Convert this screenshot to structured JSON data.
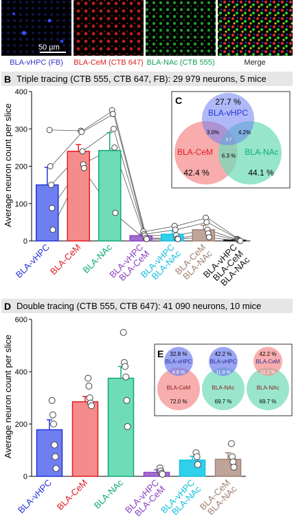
{
  "panel_a": {
    "letter": "A",
    "scale_bar_label": "50 µm",
    "channels": [
      {
        "label": "BLA-vHPC (FB)",
        "color": "#3333cc"
      },
      {
        "label": "BLA-CeM (CTB 647)",
        "color": "#e02020"
      },
      {
        "label": "BLA-NAc (CTB 555)",
        "color": "#10a050"
      },
      {
        "label": "Merge",
        "color": "#222222"
      }
    ]
  },
  "colors": {
    "vhpc": "#6f7ff0",
    "cem": "#f58c8c",
    "nac": "#6fdcb8",
    "vhpc_cem": "#a070d0",
    "vhpc_nac": "#30d0ec",
    "cem_nac": "#c0a49a",
    "triple": "#111111",
    "vhpc_text": "#2432d8",
    "cem_text": "#e01b23",
    "nac_text": "#0fa878",
    "vhpc_cem_text": "#8a3fc0",
    "vhpc_nac_text": "#10c0e0",
    "cem_nac_text": "#a08070"
  },
  "chart_data": [
    {
      "type": "bar",
      "panel_letter": "B",
      "title": "Triple tracing (CTB 555, CTB 647, FB): 29 979 neurons, 5 mice",
      "ylabel": "Average neuron count per slice",
      "ylim": [
        0,
        400
      ],
      "yticks": [
        0,
        100,
        200,
        300,
        400
      ],
      "categories": [
        [
          "BLA-vHPC"
        ],
        [
          "BLA-CeM"
        ],
        [
          "BLA-NAc"
        ],
        [
          "BLA-vHPC",
          "BLA-CeM"
        ],
        [
          "BLA-vHPC",
          "BLA-NAc"
        ],
        [
          "BLA-CeM",
          "BLA-NAc"
        ],
        [
          "BLA-vHPC",
          "BLA-CeM",
          "BLA-NAc"
        ]
      ],
      "values": [
        150,
        240,
        242,
        14,
        18,
        30,
        2
      ],
      "errors": [
        47,
        18,
        48,
        4,
        10,
        12,
        1
      ],
      "individuals": [
        [
          297,
          200,
          150,
          88,
          30
        ],
        [
          295,
          292,
          240,
          205,
          195
        ],
        [
          350,
          340,
          300,
          250,
          75
        ],
        [
          25,
          18,
          14,
          8,
          5
        ],
        [
          40,
          30,
          15,
          6,
          5
        ],
        [
          62,
          50,
          30,
          20,
          10
        ],
        [
          5,
          4,
          2,
          1,
          0
        ]
      ],
      "venn": {
        "letter": "C",
        "labels": [
          "BLA-vHPC",
          "BLA-CeM",
          "BLA-NAc"
        ],
        "percents": {
          "vhpc": "27.7 %",
          "cem": "42.4 %",
          "nac": "44.1 %",
          "vhpc_cem": "3.0%",
          "vhpc_nac": "4.2%",
          "cem_nac": "6.3 %",
          "triple": "0.7"
        }
      }
    },
    {
      "type": "bar",
      "panel_letter": "D",
      "title": "Double tracing (CTB 555, CTB 647): 41 090 neurons, 10 mice",
      "ylabel": "Average neuron count per slice",
      "ylim": [
        0,
        600
      ],
      "yticks": [
        0,
        200,
        400,
        600
      ],
      "categories": [
        [
          "BLA-vHPC"
        ],
        [
          "BLA-CeM"
        ],
        [
          "BLA-NAc"
        ],
        [
          "BLA-vHPC",
          "BLA-CeM"
        ],
        [
          "BLA-vHPC",
          "BLA-NAc"
        ],
        [
          "BLA-CeM",
          "BLA-NAc"
        ]
      ],
      "values": [
        178,
        285,
        375,
        15,
        62,
        65
      ],
      "errors": [
        38,
        20,
        45,
        10,
        15,
        25
      ],
      "individuals": [
        [
          290,
          235,
          200,
          120,
          75,
          30
        ],
        [
          375,
          345,
          300,
          280,
          270
        ],
        [
          550,
          435,
          420,
          380,
          290,
          190
        ],
        [
          32,
          20,
          12,
          8
        ],
        [
          90,
          75,
          45
        ],
        [
          125,
          75,
          55,
          35
        ]
      ],
      "venn_groups": {
        "letter": "E",
        "groups": [
          {
            "top_label": "BLA-vHPC",
            "bottom_label": "BLA-CeM",
            "top_pct": "32.8 %",
            "overlap_pct": "4.8 %",
            "bottom_pct": "72.0 %",
            "top_color": "#6f7ff0",
            "bottom_color": "#f58c8c"
          },
          {
            "top_label": "BLA-vHPC",
            "bottom_label": "BLA-NAc",
            "top_pct": "42.2 %",
            "overlap_pct": "11.9 %",
            "bottom_pct": "69.7 %",
            "top_color": "#6f7ff0",
            "bottom_color": "#6fdcb8"
          },
          {
            "top_label": "BLA-CeM",
            "bottom_label": "BLA-NAc",
            "top_pct": "42.2 %",
            "overlap_pct": "11.2 %",
            "bottom_pct": "69.7 %",
            "top_color": "#f58c8c",
            "bottom_color": "#6fdcb8"
          }
        ]
      }
    }
  ]
}
